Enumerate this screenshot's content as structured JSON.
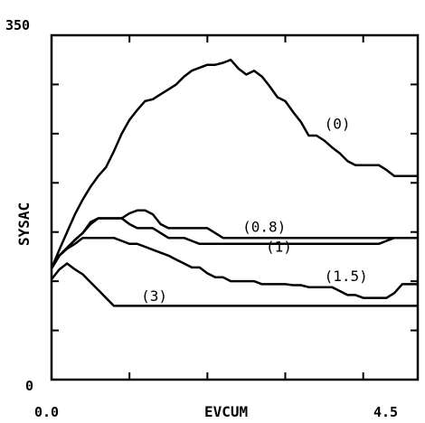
{
  "chart_data": {
    "type": "line",
    "title": "",
    "xlabel": "EVCUM",
    "ylabel": "SYSAC",
    "xlim": [
      0.0,
      4.7
    ],
    "ylim": [
      0,
      350
    ],
    "x_tick_labels": [
      "0.0",
      "4.5"
    ],
    "y_tick_labels": [
      "0",
      "350"
    ],
    "grid": false,
    "series": [
      {
        "name": "(0)",
        "points": [
          [
            0,
            113
          ],
          [
            0.1,
            132
          ],
          [
            0.2,
            150
          ],
          [
            0.3,
            168
          ],
          [
            0.4,
            183
          ],
          [
            0.5,
            196
          ],
          [
            0.6,
            207
          ],
          [
            0.7,
            216
          ],
          [
            0.8,
            232
          ],
          [
            0.9,
            250
          ],
          [
            1.0,
            264
          ],
          [
            1.1,
            274
          ],
          [
            1.2,
            283
          ],
          [
            1.3,
            285
          ],
          [
            1.4,
            290
          ],
          [
            1.5,
            295
          ],
          [
            1.6,
            300
          ],
          [
            1.7,
            308
          ],
          [
            1.8,
            314
          ],
          [
            1.9,
            317
          ],
          [
            2.0,
            320
          ],
          [
            2.1,
            320
          ],
          [
            2.2,
            322
          ],
          [
            2.3,
            325
          ],
          [
            2.4,
            316
          ],
          [
            2.5,
            310
          ],
          [
            2.6,
            314
          ],
          [
            2.7,
            308
          ],
          [
            2.8,
            298
          ],
          [
            2.9,
            287
          ],
          [
            3.0,
            283
          ],
          [
            3.1,
            272
          ],
          [
            3.2,
            262
          ],
          [
            3.3,
            248
          ],
          [
            3.4,
            248
          ],
          [
            3.5,
            243
          ],
          [
            3.6,
            236
          ],
          [
            3.7,
            230
          ],
          [
            3.8,
            222
          ],
          [
            3.9,
            218
          ],
          [
            4.0,
            218
          ],
          [
            4.1,
            218
          ],
          [
            4.2,
            218
          ],
          [
            4.3,
            213
          ],
          [
            4.4,
            207
          ],
          [
            4.5,
            207
          ],
          [
            4.6,
            207
          ],
          [
            4.7,
            207
          ]
        ]
      },
      {
        "name": "(0.8)",
        "points": [
          [
            0,
            113
          ],
          [
            0.1,
            126
          ],
          [
            0.2,
            134
          ],
          [
            0.3,
            142
          ],
          [
            0.4,
            149
          ],
          [
            0.5,
            160
          ],
          [
            0.6,
            164
          ],
          [
            0.7,
            164
          ],
          [
            0.8,
            164
          ],
          [
            0.9,
            164
          ],
          [
            1.0,
            169
          ],
          [
            1.1,
            172
          ],
          [
            1.2,
            172
          ],
          [
            1.3,
            168
          ],
          [
            1.4,
            158
          ],
          [
            1.5,
            154
          ],
          [
            1.6,
            154
          ],
          [
            1.7,
            154
          ],
          [
            1.8,
            154
          ],
          [
            1.9,
            154
          ],
          [
            2.0,
            154
          ],
          [
            2.1,
            149
          ],
          [
            2.2,
            144
          ],
          [
            2.3,
            144
          ],
          [
            2.5,
            144
          ],
          [
            3.0,
            144
          ],
          [
            3.5,
            144
          ],
          [
            4.0,
            144
          ],
          [
            4.5,
            144
          ],
          [
            4.7,
            144
          ]
        ]
      },
      {
        "name": "(1)",
        "points": [
          [
            0,
            113
          ],
          [
            0.1,
            126
          ],
          [
            0.2,
            134
          ],
          [
            0.3,
            142
          ],
          [
            0.4,
            149
          ],
          [
            0.5,
            158
          ],
          [
            0.6,
            164
          ],
          [
            0.7,
            164
          ],
          [
            0.8,
            164
          ],
          [
            0.9,
            164
          ],
          [
            1.0,
            158
          ],
          [
            1.1,
            154
          ],
          [
            1.2,
            154
          ],
          [
            1.3,
            154
          ],
          [
            1.4,
            149
          ],
          [
            1.5,
            144
          ],
          [
            1.6,
            144
          ],
          [
            1.7,
            144
          ],
          [
            1.8,
            141
          ],
          [
            1.9,
            138
          ],
          [
            2.0,
            138
          ],
          [
            2.5,
            138
          ],
          [
            3.0,
            138
          ],
          [
            3.5,
            138
          ],
          [
            4.0,
            138
          ],
          [
            4.2,
            138
          ],
          [
            4.3,
            141
          ],
          [
            4.4,
            144
          ],
          [
            4.5,
            144
          ],
          [
            4.7,
            144
          ]
        ]
      },
      {
        "name": "(1.5)",
        "points": [
          [
            0,
            113
          ],
          [
            0.1,
            126
          ],
          [
            0.2,
            133
          ],
          [
            0.3,
            138
          ],
          [
            0.4,
            144
          ],
          [
            0.5,
            144
          ],
          [
            0.6,
            144
          ],
          [
            0.7,
            144
          ],
          [
            0.8,
            144
          ],
          [
            0.9,
            141
          ],
          [
            1.0,
            138
          ],
          [
            1.1,
            138
          ],
          [
            1.2,
            135
          ],
          [
            1.3,
            132
          ],
          [
            1.4,
            129
          ],
          [
            1.5,
            126
          ],
          [
            1.6,
            122
          ],
          [
            1.7,
            118
          ],
          [
            1.8,
            114
          ],
          [
            1.9,
            114
          ],
          [
            2.0,
            108
          ],
          [
            2.1,
            104
          ],
          [
            2.2,
            104
          ],
          [
            2.3,
            100
          ],
          [
            2.4,
            100
          ],
          [
            2.5,
            100
          ],
          [
            2.6,
            100
          ],
          [
            2.7,
            97
          ],
          [
            2.8,
            97
          ],
          [
            2.9,
            97
          ],
          [
            3.0,
            97
          ],
          [
            3.1,
            96
          ],
          [
            3.2,
            96
          ],
          [
            3.3,
            94
          ],
          [
            3.4,
            94
          ],
          [
            3.5,
            94
          ],
          [
            3.6,
            94
          ],
          [
            3.7,
            90
          ],
          [
            3.8,
            86
          ],
          [
            3.9,
            86
          ],
          [
            4.0,
            83
          ],
          [
            4.1,
            83
          ],
          [
            4.2,
            83
          ],
          [
            4.3,
            83
          ],
          [
            4.4,
            88
          ],
          [
            4.5,
            97
          ],
          [
            4.6,
            97
          ],
          [
            4.7,
            97
          ]
        ]
      },
      {
        "name": "(3)",
        "points": [
          [
            0,
            102
          ],
          [
            0.1,
            112
          ],
          [
            0.2,
            118
          ],
          [
            0.3,
            112
          ],
          [
            0.4,
            107
          ],
          [
            0.5,
            99
          ],
          [
            0.6,
            91
          ],
          [
            0.7,
            83
          ],
          [
            0.8,
            75
          ],
          [
            0.9,
            75
          ],
          [
            1.0,
            75
          ],
          [
            1.5,
            75
          ],
          [
            2.0,
            75
          ],
          [
            2.5,
            75
          ],
          [
            3.0,
            75
          ],
          [
            3.5,
            75
          ],
          [
            4.0,
            75
          ],
          [
            4.5,
            75
          ],
          [
            4.7,
            75
          ]
        ]
      }
    ],
    "curve_labels": [
      {
        "text": "(0)",
        "at": [
          3.5,
          255
        ]
      },
      {
        "text": "(0.8)",
        "at": [
          2.45,
          150
        ]
      },
      {
        "text": "(1)",
        "at": [
          2.75,
          130
        ]
      },
      {
        "text": "(1.5)",
        "at": [
          3.5,
          100
        ]
      },
      {
        "text": "(3)",
        "at": [
          1.15,
          80
        ]
      }
    ]
  }
}
